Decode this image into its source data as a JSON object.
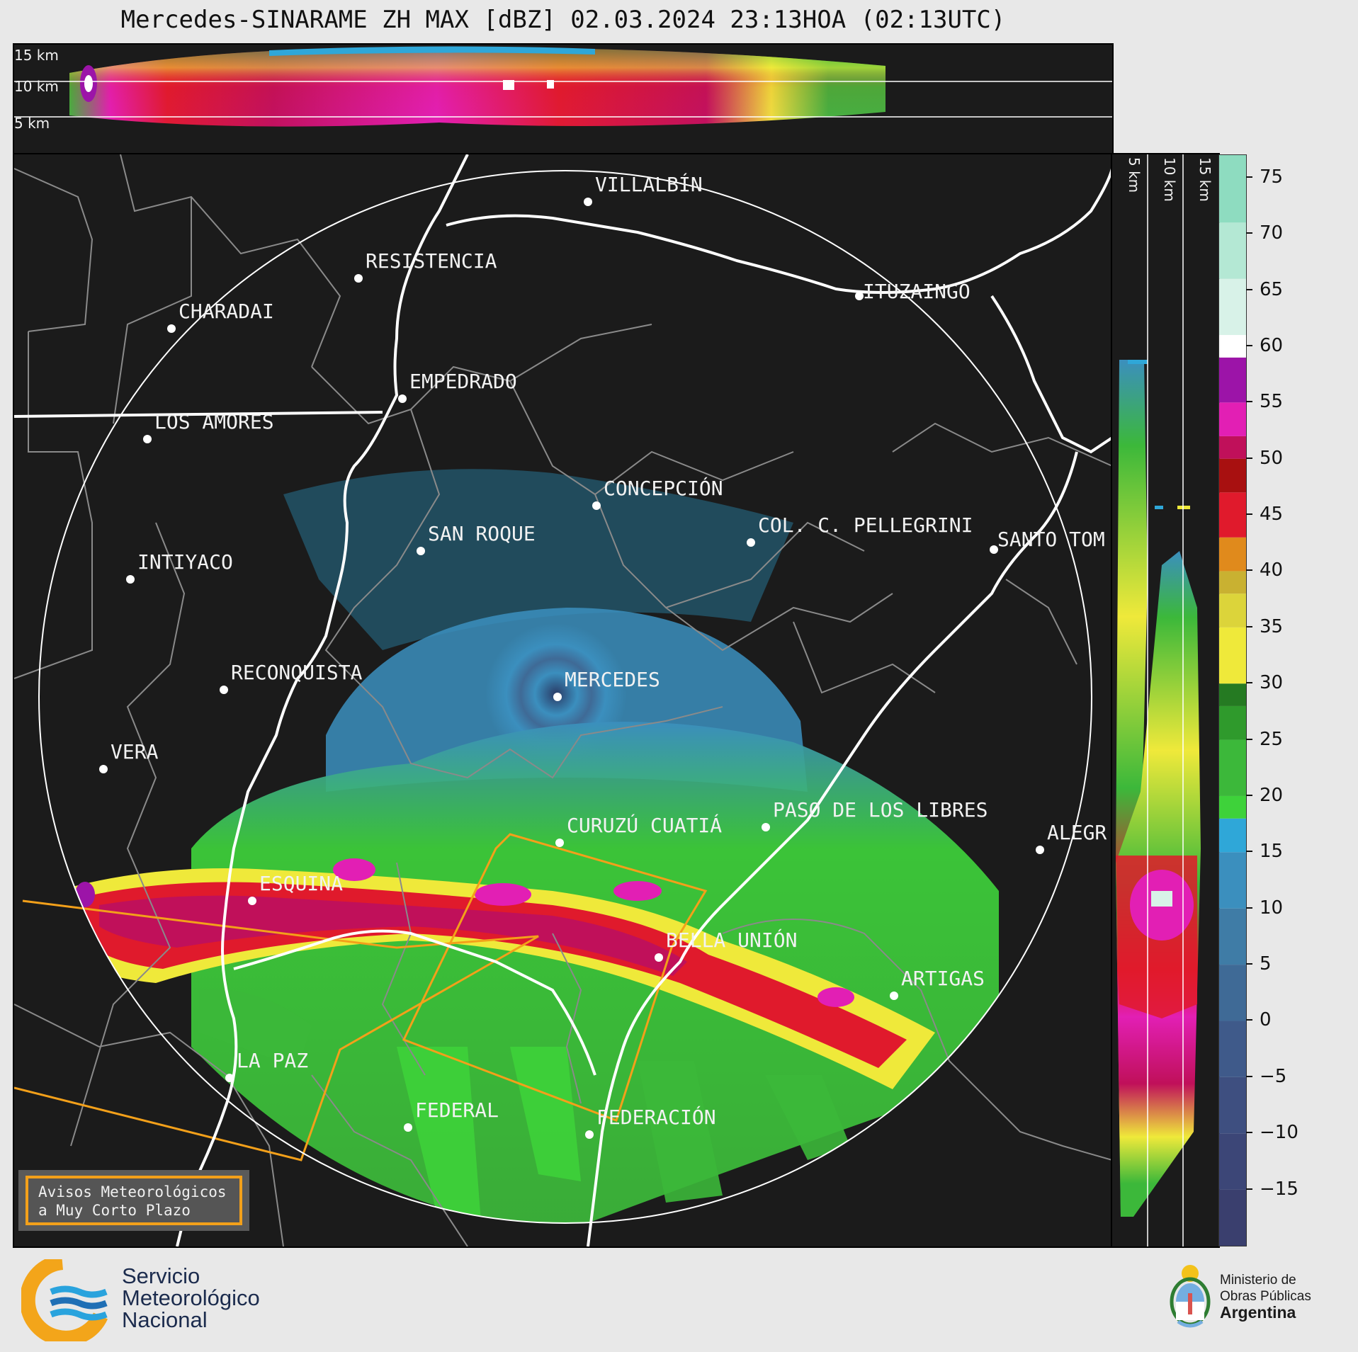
{
  "title": "Mercedes-SINARAME ZH MAX [dBZ] 02.03.2024 23:13HOA (02:13UTC)",
  "top_panel": {
    "altitude_labels": [
      "15 km",
      "10 km",
      "5 km"
    ]
  },
  "side_panel": {
    "altitude_labels": [
      "5 km",
      "10 km",
      "15 km"
    ]
  },
  "cities": [
    {
      "name": "VILLALBÍN"
    },
    {
      "name": "RESISTENCIA"
    },
    {
      "name": "CHARADAI"
    },
    {
      "name": "ITUZAINGÓ"
    },
    {
      "name": "EMPEDRADO"
    },
    {
      "name": "LOS AMORES"
    },
    {
      "name": "CONCEPCIÓN"
    },
    {
      "name": "SAN ROQUE"
    },
    {
      "name": "COL. C. PELLEGRINI"
    },
    {
      "name": "SANTO TOM"
    },
    {
      "name": "INTIYACO"
    },
    {
      "name": "RECONQUISTA"
    },
    {
      "name": "MERCEDES"
    },
    {
      "name": "VERA"
    },
    {
      "name": "PASO DE LOS LIBRES"
    },
    {
      "name": "CURUZÚ CUATIÁ"
    },
    {
      "name": "ALEGR"
    },
    {
      "name": "ESQUINA"
    },
    {
      "name": "BELLA UNIÓN"
    },
    {
      "name": "ARTIGAS"
    },
    {
      "name": "LA PAZ"
    },
    {
      "name": "FEDERAL"
    },
    {
      "name": "FEDERACIÓN"
    }
  ],
  "colorbar": {
    "unit": "dBZ",
    "ticks": [
      "75",
      "70",
      "65",
      "60",
      "55",
      "50",
      "45",
      "40",
      "35",
      "30",
      "25",
      "20",
      "15",
      "10",
      "5",
      "0",
      "−5",
      "−10",
      "−15"
    ],
    "min": -20,
    "max": 77,
    "segments": [
      {
        "from": -20,
        "to": -15,
        "color": "#3a3f6e"
      },
      {
        "from": -15,
        "to": -10,
        "color": "#3c4677"
      },
      {
        "from": -10,
        "to": -5,
        "color": "#3e4f80"
      },
      {
        "from": -5,
        "to": 0,
        "color": "#3f5a8a"
      },
      {
        "from": 0,
        "to": 5,
        "color": "#3f6a96"
      },
      {
        "from": 5,
        "to": 10,
        "color": "#3f7ca6"
      },
      {
        "from": 10,
        "to": 15,
        "color": "#3b8fbe"
      },
      {
        "from": 15,
        "to": 18,
        "color": "#2fa7d8"
      },
      {
        "from": 18,
        "to": 20,
        "color": "#3ed23a"
      },
      {
        "from": 20,
        "to": 25,
        "color": "#3cb83a"
      },
      {
        "from": 25,
        "to": 28,
        "color": "#2f9a2c"
      },
      {
        "from": 28,
        "to": 30,
        "color": "#257a22"
      },
      {
        "from": 30,
        "to": 35,
        "color": "#efe93a"
      },
      {
        "from": 35,
        "to": 38,
        "color": "#dcd43a"
      },
      {
        "from": 38,
        "to": 40,
        "color": "#c9b131"
      },
      {
        "from": 40,
        "to": 43,
        "color": "#e08a1c"
      },
      {
        "from": 43,
        "to": 47,
        "color": "#e01a2c"
      },
      {
        "from": 47,
        "to": 50,
        "color": "#a81010"
      },
      {
        "from": 50,
        "to": 52,
        "color": "#c0105a"
      },
      {
        "from": 52,
        "to": 55,
        "color": "#e21fb4"
      },
      {
        "from": 55,
        "to": 59,
        "color": "#9c14a8"
      },
      {
        "from": 59,
        "to": 61,
        "color": "#ffffff"
      },
      {
        "from": 61,
        "to": 66,
        "color": "#d8f2e8"
      },
      {
        "from": 66,
        "to": 71,
        "color": "#b4e8d4"
      },
      {
        "from": 71,
        "to": 77,
        "color": "#8edcc0"
      }
    ]
  },
  "warning_box": {
    "line1": "Avisos Meteorológicos",
    "line2": "a Muy Corto Plazo"
  },
  "footer": {
    "smn_line1": "Servicio",
    "smn_line2": "Meteorológico",
    "smn_line3": "Nacional",
    "ministry_line1": "Ministerio de",
    "ministry_line2": "Obras Públicas",
    "ministry_line3": "Argentina"
  }
}
